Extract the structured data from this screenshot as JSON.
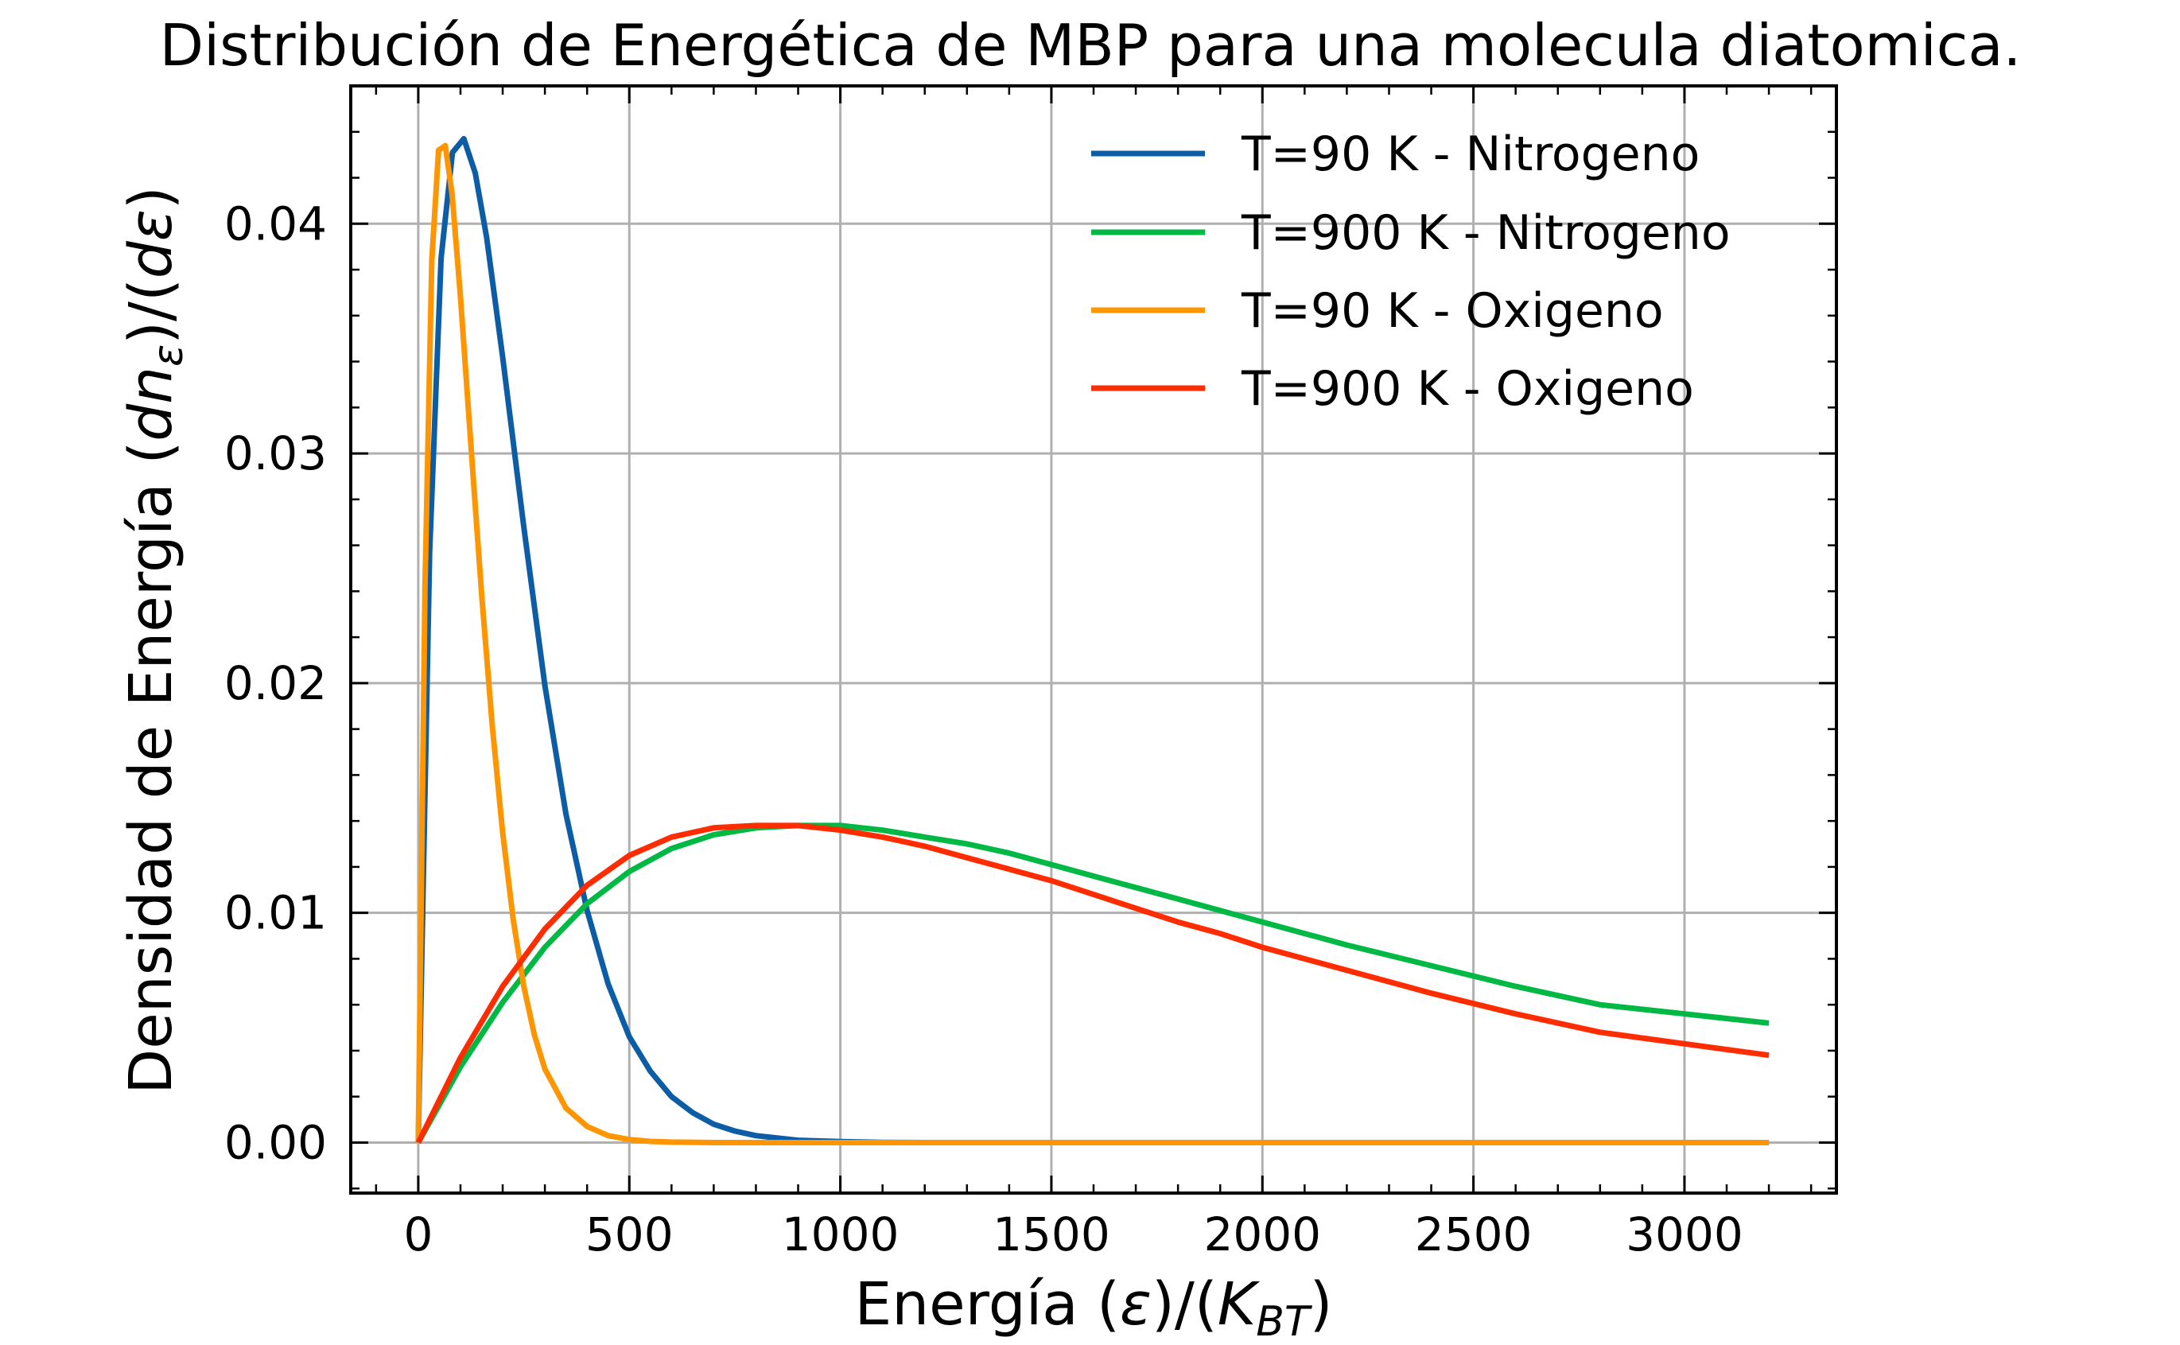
{
  "chart_data": {
    "type": "line",
    "title": "Distribución de Energética de MBP para una molecula diatomica.",
    "xlabel": {
      "prefix": "Energía (",
      "epsilon": "ε",
      "mid": ")/(",
      "k": "K",
      "sub": "BT",
      "suffix": ")"
    },
    "ylabel": {
      "prefix": "Densidad de Energía (",
      "dn": "dn",
      "sub": "ε",
      "mid": ")/(",
      "deps": "dε",
      "suffix": ")"
    },
    "xlim": [
      -160,
      3360
    ],
    "ylim": [
      -0.0022,
      0.046
    ],
    "xticks": [
      0,
      500,
      1000,
      1500,
      2000,
      2500,
      3000
    ],
    "xtick_labels": [
      "0",
      "500",
      "1000",
      "1500",
      "2000",
      "2500",
      "3000"
    ],
    "yticks": [
      0.0,
      0.01,
      0.02,
      0.03,
      0.04
    ],
    "ytick_labels": [
      "0.00",
      "0.01",
      "0.02",
      "0.03",
      "0.04"
    ],
    "grid": true,
    "legend_position": "top-right",
    "series": [
      {
        "name": "T=90 K - Nitrogeno",
        "color": "#0c5da5",
        "x": [
          0,
          27,
          54,
          81,
          108,
          135,
          162,
          200,
          250,
          300,
          350,
          400,
          450,
          500,
          550,
          600,
          650,
          700,
          750,
          800,
          850,
          900,
          1000,
          1100,
          1200,
          1500,
          2000,
          2500,
          3000,
          3200
        ],
        "y": [
          0,
          0.0257,
          0.0385,
          0.0431,
          0.0437,
          0.0422,
          0.0394,
          0.0342,
          0.0268,
          0.0199,
          0.0143,
          0.0101,
          0.0069,
          0.0046,
          0.0031,
          0.002,
          0.0013,
          0.0008,
          0.0005,
          0.0003,
          0.0002,
          0.0001,
          4e-05,
          1e-05,
          0,
          0,
          0,
          0,
          0,
          0
        ]
      },
      {
        "name": "T=900 K - Nitrogeno",
        "color": "#00b945",
        "x": [
          0,
          100,
          200,
          300,
          400,
          500,
          600,
          700,
          800,
          900,
          1000,
          1100,
          1200,
          1300,
          1400,
          1500,
          1600,
          1700,
          1800,
          1900,
          2000,
          2200,
          2400,
          2600,
          2800,
          3000,
          3200
        ],
        "y": [
          0,
          0.0033,
          0.0061,
          0.0085,
          0.0104,
          0.0118,
          0.0128,
          0.0134,
          0.0137,
          0.0138,
          0.0138,
          0.0136,
          0.0133,
          0.013,
          0.0126,
          0.0121,
          0.0116,
          0.0111,
          0.0106,
          0.0101,
          0.0096,
          0.0086,
          0.0077,
          0.0068,
          0.006,
          0.0056,
          0.0052
        ]
      },
      {
        "name": "T=90 K - Oxigeno",
        "color": "#ff9500",
        "x": [
          0,
          16,
          32,
          48,
          64,
          80,
          100,
          125,
          150,
          175,
          200,
          225,
          250,
          275,
          300,
          350,
          400,
          450,
          500,
          550,
          600,
          700,
          800,
          1000,
          1500,
          2000,
          2500,
          3000,
          3200
        ],
        "y": [
          0,
          0.0243,
          0.0384,
          0.0432,
          0.0434,
          0.0413,
          0.0368,
          0.0303,
          0.0239,
          0.0182,
          0.0135,
          0.0097,
          0.0068,
          0.0047,
          0.0032,
          0.0015,
          0.0007,
          0.0003,
          0.00013,
          5e-05,
          2e-05,
          0,
          0,
          0,
          0,
          0,
          0,
          0,
          0
        ]
      },
      {
        "name": "T=900 K - Oxigeno",
        "color": "#ff2c00",
        "x": [
          0,
          100,
          200,
          300,
          400,
          500,
          600,
          700,
          800,
          900,
          1000,
          1100,
          1200,
          1300,
          1400,
          1500,
          1600,
          1700,
          1800,
          1900,
          2000,
          2200,
          2400,
          2600,
          2800,
          3000,
          3200
        ],
        "y": [
          0,
          0.0037,
          0.0068,
          0.0093,
          0.0112,
          0.0125,
          0.0133,
          0.0137,
          0.0138,
          0.0138,
          0.0136,
          0.0133,
          0.0129,
          0.0124,
          0.0119,
          0.0114,
          0.0108,
          0.0102,
          0.0096,
          0.0091,
          0.0085,
          0.0075,
          0.0065,
          0.0056,
          0.0048,
          0.0043,
          0.0038
        ]
      }
    ]
  }
}
